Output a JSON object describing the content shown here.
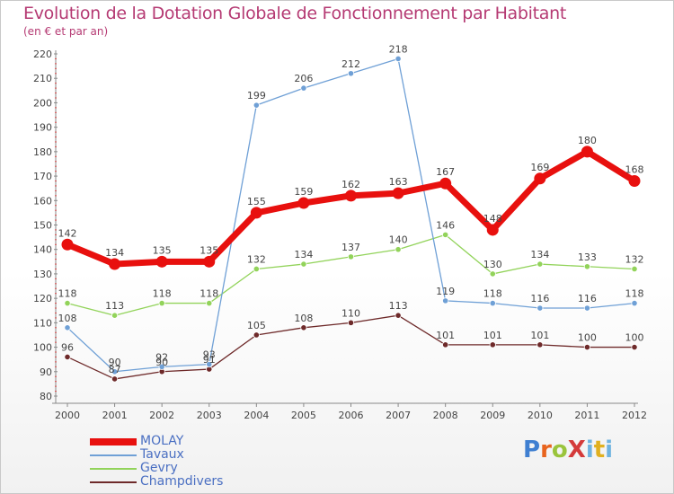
{
  "title": "Evolution de la Dotation Globale de Fonctionnement par Habitant",
  "subtitle": "(en € et par an)",
  "brand": "ProXiti",
  "chart_data": {
    "type": "line",
    "title": "Evolution de la Dotation Globale de Fonctionnement par Habitant",
    "subtitle": "(en € et par an)",
    "x": [
      "2000",
      "2001",
      "2002",
      "2003",
      "2004",
      "2005",
      "2006",
      "2007",
      "2008",
      "2009",
      "2010",
      "2011",
      "2012"
    ],
    "ylim": [
      80,
      220
    ],
    "yticks": [
      80,
      90,
      100,
      110,
      120,
      130,
      140,
      150,
      160,
      170,
      180,
      190,
      200,
      210,
      220
    ],
    "grid": false,
    "legend_position": "bottom-left",
    "series": [
      {
        "name": "MOLAY",
        "color": "#e8100e",
        "values": [
          142,
          134,
          135,
          135,
          155,
          159,
          162,
          163,
          167,
          148,
          169,
          180,
          168
        ]
      },
      {
        "name": "Tavaux",
        "color": "#6fa0d6",
        "values": [
          108,
          90,
          92,
          93,
          199,
          206,
          212,
          218,
          119,
          118,
          116,
          116,
          118
        ]
      },
      {
        "name": "Gevry",
        "color": "#92d35a",
        "values": [
          118,
          113,
          118,
          118,
          132,
          134,
          137,
          140,
          146,
          130,
          134,
          133,
          132
        ]
      },
      {
        "name": "Champdivers",
        "color": "#6e2a2a",
        "values": [
          96,
          87,
          90,
          91,
          105,
          108,
          110,
          113,
          101,
          101,
          101,
          100,
          100
        ]
      }
    ]
  }
}
